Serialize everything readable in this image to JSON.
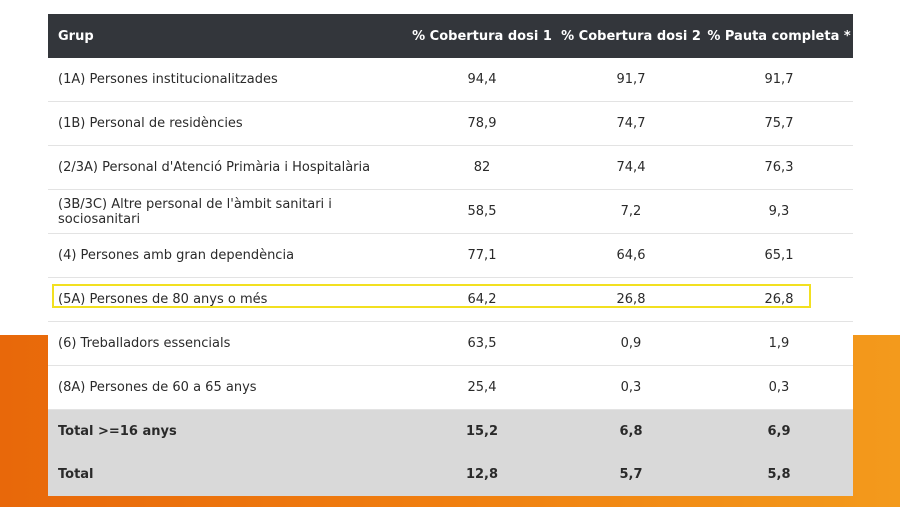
{
  "table": {
    "header": [
      "Grup",
      "% Cobertura dosi 1",
      "% Cobertura dosi 2",
      "% Pauta completa *"
    ],
    "rows": [
      [
        "(1A) Persones institucionalitzades",
        "94,4",
        "91,7",
        "91,7"
      ],
      [
        "(1B) Personal de residències",
        "78,9",
        "74,7",
        "75,7"
      ],
      [
        "(2/3A) Personal d'Atenció Primària i Hospitalària",
        "82",
        "74,4",
        "76,3"
      ],
      [
        "(3B/3C) Altre personal de l'àmbit sanitari i sociosanitari",
        "58,5",
        "7,2",
        "9,3"
      ],
      [
        "(4) Persones amb gran dependència",
        "77,1",
        "64,6",
        "65,1"
      ],
      [
        "(5A) Persones de 80 anys o més",
        "64,2",
        "26,8",
        "26,8"
      ],
      [
        "(6) Treballadors essencials",
        "63,5",
        "0,9",
        "1,9"
      ],
      [
        "(8A) Persones de 60 a 65 anys",
        "25,4",
        "0,3",
        "0,3"
      ]
    ],
    "totals": [
      [
        "Total >=16 anys",
        "15,2",
        "6,8",
        "6,9"
      ],
      [
        "Total",
        "12,8",
        "5,7",
        "5,8"
      ]
    ]
  }
}
